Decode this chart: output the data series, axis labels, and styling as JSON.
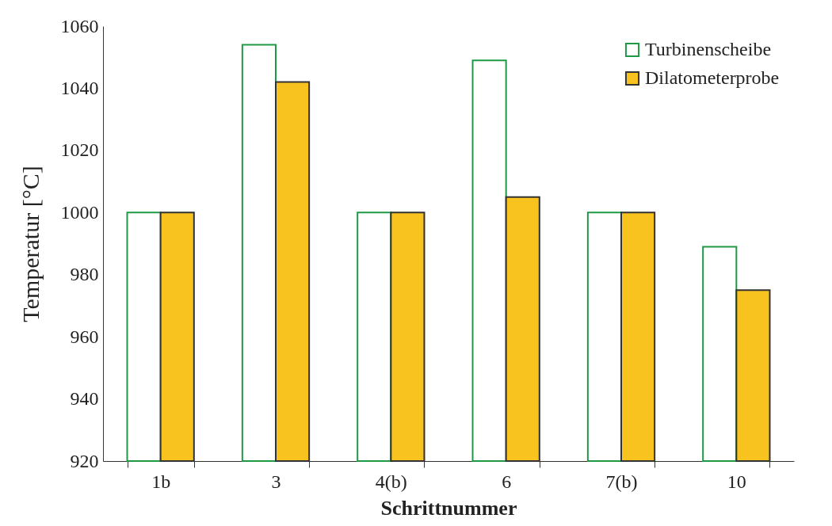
{
  "chart_data": {
    "type": "bar",
    "xlabel": "Schrittnummer",
    "ylabel": "Temperatur [°C]",
    "categories": [
      "1b",
      "3",
      "4(b)",
      "6",
      "7(b)",
      "10"
    ],
    "series": [
      {
        "name": "Turbinenscheibe",
        "color": "#1e9a45",
        "values": [
          1000,
          1054,
          1000,
          1049,
          1000,
          989
        ]
      },
      {
        "name": "Dilatometerprobe",
        "color": "#f9c31f",
        "values": [
          1000,
          1042,
          1000,
          1005,
          1000,
          975
        ]
      }
    ],
    "ylim": [
      920,
      1060
    ],
    "yticks": [
      920,
      940,
      960,
      980,
      1000,
      1020,
      1040,
      1060
    ],
    "grid": false,
    "legend": "top right"
  }
}
